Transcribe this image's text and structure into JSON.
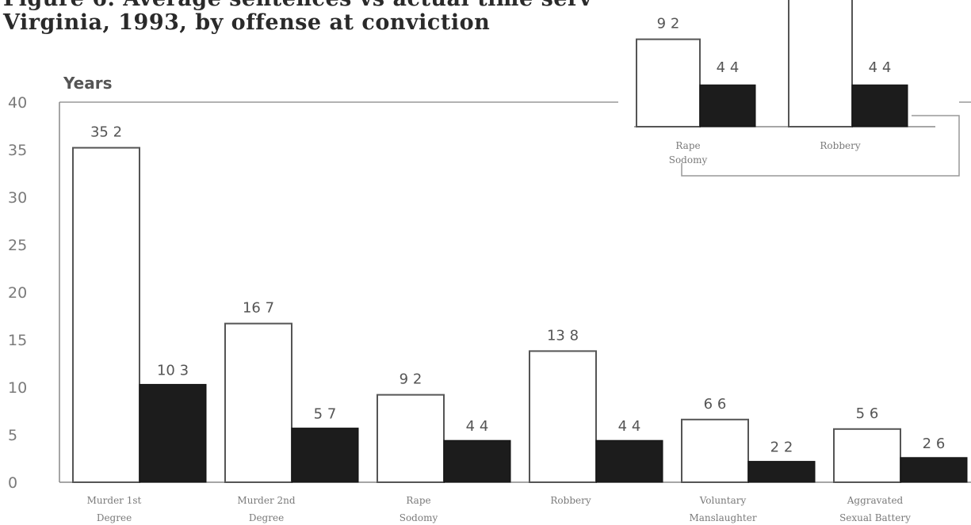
{
  "title_lines": [
    "Figure 6. Average sentences vs actual time serv",
    "Virginia, 1993, by offense at conviction"
  ],
  "chart_data": [
    {
      "type": "bar",
      "unit_label": "Years",
      "ylim": [
        0,
        40
      ],
      "yticks": [
        "0",
        "5",
        "10",
        "15",
        "20",
        "25",
        "30",
        "35",
        "40"
      ],
      "categories": [
        [
          "Murder 1st",
          "Degree"
        ],
        [
          "Murder 2nd",
          "Degree"
        ],
        [
          "Rape",
          "Sodomy"
        ],
        [
          "Robbery"
        ],
        [
          "Voluntary",
          "Manslaughter"
        ],
        [
          "Aggravated",
          "Sexual Battery"
        ]
      ],
      "series": [
        {
          "color": "#ffffff",
          "values": [
            35.2,
            16.7,
            9.2,
            13.8,
            6.6,
            5.6
          ],
          "labels": [
            "35 2",
            "16 7",
            "9 2",
            "13 8",
            "6 6",
            "5 6"
          ]
        },
        {
          "color": "#1c1c1c",
          "values": [
            10.3,
            5.7,
            4.4,
            4.4,
            2.2,
            2.6
          ],
          "labels": [
            "10 3",
            "5 7",
            "4 4",
            "4 4",
            "2 2",
            "2 6"
          ]
        }
      ],
      "legend": "none",
      "grid": false
    },
    {
      "type": "bar",
      "note": "inset fragment, partially visible",
      "categories": [
        [
          "Rape",
          "Sodomy"
        ],
        [
          "Robbery"
        ]
      ],
      "series": [
        {
          "color": "#ffffff",
          "values": [
            9.2,
            null
          ],
          "labels": [
            "9 2",
            ""
          ]
        },
        {
          "color": "#1c1c1c",
          "values": [
            4.4,
            4.4
          ],
          "labels": [
            "4 4",
            "4 4"
          ]
        }
      ],
      "legend": "none",
      "grid": false
    }
  ]
}
